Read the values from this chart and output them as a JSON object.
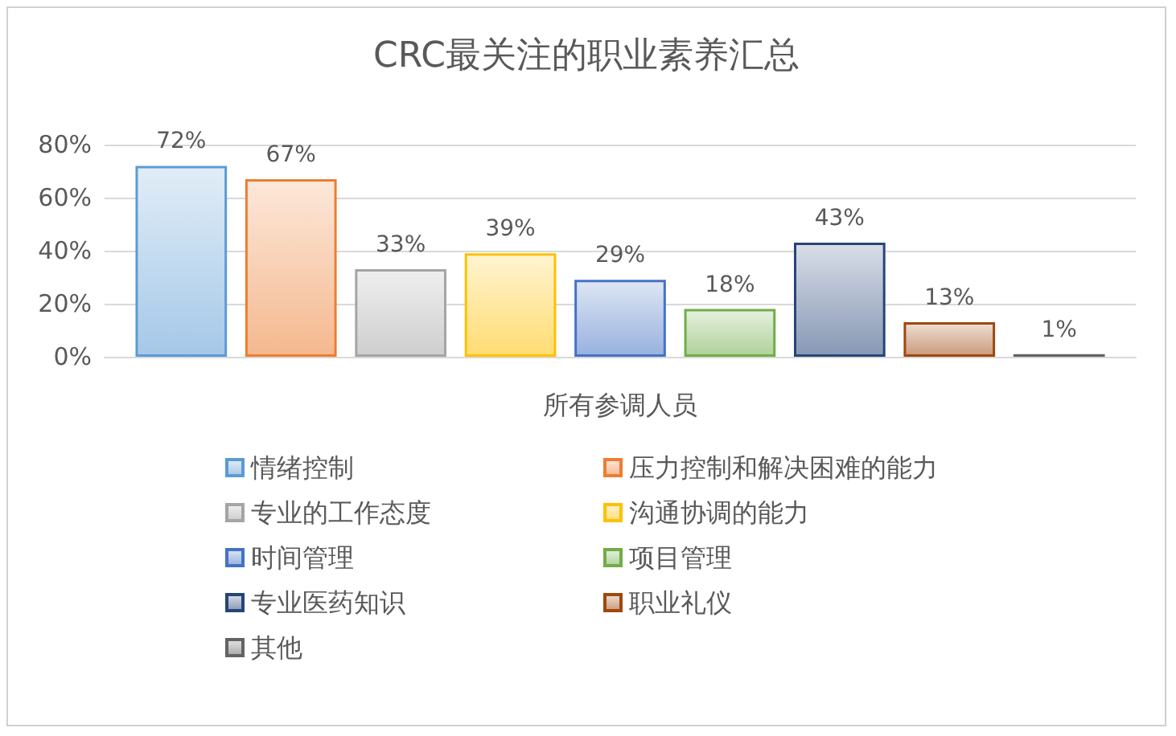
{
  "chart_data": {
    "type": "bar",
    "title": "CRC最关注的职业素养汇总",
    "xlabel": "所有参调人员",
    "categories": [
      null
    ],
    "series": [
      {
        "name": "情绪控制",
        "color": "#5b9bd5",
        "values": [
          72
        ],
        "value_labels": [
          "72%"
        ]
      },
      {
        "name": "压力控制和解决困难的能力",
        "color": "#ed7d31",
        "values": [
          67
        ],
        "value_labels": [
          "67%"
        ]
      },
      {
        "name": "专业的工作态度",
        "color": "#a5a5a5",
        "values": [
          33
        ],
        "value_labels": [
          "33%"
        ]
      },
      {
        "name": "沟通协调的能力",
        "color": "#ffc000",
        "values": [
          39
        ],
        "value_labels": [
          "39%"
        ]
      },
      {
        "name": "时间管理",
        "color": "#4472c4",
        "values": [
          29
        ],
        "value_labels": [
          "29%"
        ]
      },
      {
        "name": "项目管理",
        "color": "#70ad47",
        "values": [
          18
        ],
        "value_labels": [
          "18%"
        ]
      },
      {
        "name": "专业医药知识",
        "color": "#264478",
        "values": [
          43
        ],
        "value_labels": [
          "43%"
        ]
      },
      {
        "name": "职业礼仪",
        "color": "#9e480e",
        "values": [
          13
        ],
        "value_labels": [
          "13%"
        ]
      },
      {
        "name": "其他",
        "color": "#636363",
        "values": [
          1
        ],
        "value_labels": [
          "1%"
        ]
      }
    ],
    "ylim": [
      0,
      80
    ],
    "yticks": [
      {
        "value": 0,
        "label": "0%"
      },
      {
        "value": 20,
        "label": "20%"
      },
      {
        "value": 40,
        "label": "40%"
      },
      {
        "value": 60,
        "label": "60%"
      },
      {
        "value": 80,
        "label": "80%"
      }
    ],
    "grid": "y",
    "legend": "bottom"
  }
}
